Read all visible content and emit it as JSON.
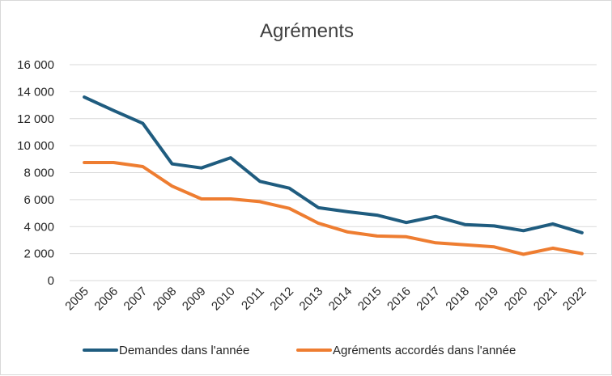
{
  "chart_data": {
    "type": "line",
    "title": "Agréments",
    "xlabel": "",
    "ylabel": "",
    "categories": [
      "2005",
      "2006",
      "2007",
      "2008",
      "2009",
      "2010",
      "2011",
      "2012",
      "2013",
      "2014",
      "2015",
      "2016",
      "2017",
      "2018",
      "2019",
      "2020",
      "2021",
      "2022"
    ],
    "ylim": [
      0,
      16000
    ],
    "yticks": [
      {
        "value": 0,
        "label": "0"
      },
      {
        "value": 2000,
        "label": "2 000"
      },
      {
        "value": 4000,
        "label": "4 000"
      },
      {
        "value": 6000,
        "label": "6 000"
      },
      {
        "value": 8000,
        "label": "8 000"
      },
      {
        "value": 10000,
        "label": "10 000"
      },
      {
        "value": 12000,
        "label": "12 000"
      },
      {
        "value": 14000,
        "label": "14 000"
      },
      {
        "value": 16000,
        "label": "16 000"
      }
    ],
    "grid": true,
    "legend_position": "bottom",
    "series": [
      {
        "name": "Demandes dans l'année",
        "color": "#1f5c7f",
        "values": [
          13600,
          12600,
          11650,
          8650,
          8350,
          9100,
          7350,
          6850,
          5400,
          5100,
          4850,
          4300,
          4750,
          4150,
          4050,
          3700,
          4200,
          3550
        ]
      },
      {
        "name": "Agréments accordés dans l'année",
        "color": "#ee7d31",
        "values": [
          8750,
          8750,
          8450,
          7000,
          6050,
          6050,
          5850,
          5350,
          4250,
          3600,
          3300,
          3250,
          2800,
          2650,
          2500,
          1950,
          2400,
          2000
        ]
      }
    ]
  }
}
